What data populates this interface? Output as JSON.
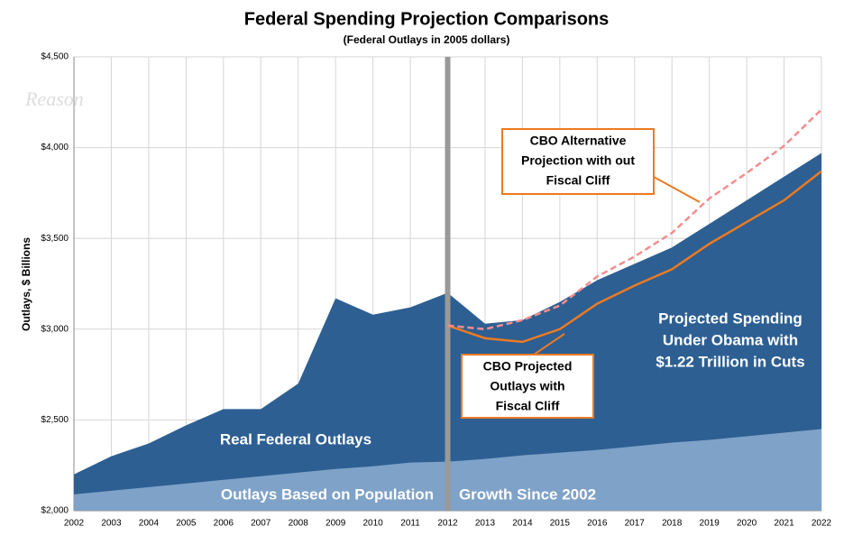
{
  "chart_data": {
    "type": "area",
    "title": "Federal Spending Projection Comparisons",
    "subtitle": "(Federal Outlays in 2005 dollars)",
    "y_label": "Outlays, $ Billions",
    "watermark": "Reason",
    "categories": [
      "2002",
      "2003",
      "2004",
      "2005",
      "2006",
      "2007",
      "2008",
      "2009",
      "2010",
      "2011",
      "2012",
      "2013",
      "2014",
      "2015",
      "2016",
      "2017",
      "2018",
      "2019",
      "2020",
      "2021",
      "2022"
    ],
    "ylim": [
      2000,
      4500
    ],
    "yticks": [
      {
        "value": 2000,
        "label": "$2,000"
      },
      {
        "value": 2500,
        "label": "$2,500"
      },
      {
        "value": 3000,
        "label": "$3,000"
      },
      {
        "value": 3500,
        "label": "$3,500"
      },
      {
        "value": 4000,
        "label": "$4,000"
      },
      {
        "value": 4500,
        "label": "$4,500"
      }
    ],
    "grid": true,
    "divider_at": "2012",
    "series": [
      {
        "style": "area",
        "color": "#2d5f93",
        "values": [
          2200,
          2300,
          2370,
          2470,
          2560,
          2560,
          2700,
          3170,
          3080,
          3120,
          3200,
          3030,
          3050,
          3150,
          3270,
          3360,
          3450,
          3580,
          3710,
          3840,
          3970
        ]
      },
      {
        "style": "area",
        "color": "#7fa2c8",
        "values": [
          2090,
          2110,
          2130,
          2150,
          2170,
          2190,
          2210,
          2230,
          2245,
          2265,
          2270,
          2285,
          2305,
          2320,
          2335,
          2355,
          2375,
          2390,
          2410,
          2430,
          2450
        ]
      },
      {
        "style": "line",
        "color": "#ec7a22",
        "values": [
          null,
          null,
          null,
          null,
          null,
          null,
          null,
          null,
          null,
          null,
          3020,
          2950,
          2930,
          3000,
          3140,
          3240,
          3330,
          3470,
          3590,
          3710,
          3870
        ]
      },
      {
        "style": "dashed",
        "color": "#f48d8f",
        "values": [
          null,
          null,
          null,
          null,
          null,
          null,
          null,
          null,
          null,
          null,
          3020,
          3000,
          3050,
          3130,
          3290,
          3400,
          3530,
          3720,
          3860,
          4010,
          4210
        ]
      }
    ],
    "area_labels": [
      "Real Federal Outlays",
      "Outlays Based on Population",
      "Growth Since 2002"
    ],
    "projection_label": [
      "Projected Spending",
      "Under Obama with",
      "$1.22 Trillion in Cuts"
    ],
    "callouts": [
      {
        "lines": [
          "CBO Alternative",
          "Projection with out",
          "Fiscal Cliff"
        ]
      },
      {
        "lines": [
          "CBO Projected",
          "Outlays with",
          "Fiscal Cliff"
        ]
      }
    ]
  }
}
